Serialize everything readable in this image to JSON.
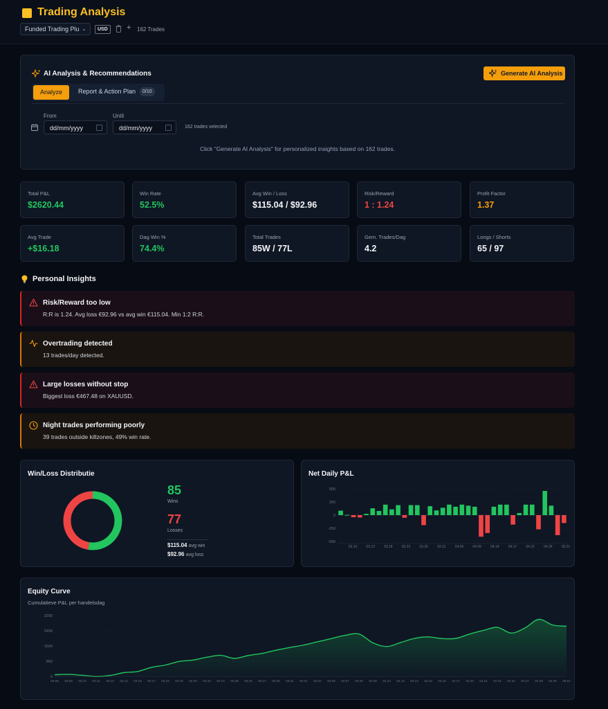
{
  "header": {
    "title": "Trading Analysis",
    "account": "Funded Trading Plu",
    "currency": "USD",
    "trades": "162 Trades"
  },
  "ai": {
    "title": "AI Analysis & Recommendations",
    "generate_label": "Generate AI Analysis",
    "tabs": {
      "analyze": "Analyze",
      "report": "Report & Action Plan",
      "report_badge": "0/10"
    },
    "from_label": "From",
    "until_label": "Until",
    "from_placeholder": "dd/mm/yyyy",
    "until_placeholder": "dd/mm/yyyy",
    "selected": "162 trades selected",
    "hint": "Click \"Generate AI Analysis\" for personalized insights based on 162 trades."
  },
  "stats": [
    {
      "label": "Total P&L",
      "value": "$2620.44",
      "color": "#22c55e"
    },
    {
      "label": "Win Rate",
      "value": "52.5%",
      "color": "#22c55e"
    },
    {
      "label": "Avg Win / Loss",
      "value": "$115.04 / $92.96",
      "color": "#f3f4f6"
    },
    {
      "label": "Risk/Reward",
      "value": "1 : 1.24",
      "color": "#ef4444"
    },
    {
      "label": "Profit Factor",
      "value": "1.37",
      "color": "#f59e0b"
    },
    {
      "label": "Avg Trade",
      "value": "+$16.18",
      "color": "#22c55e"
    },
    {
      "label": "Dag Win %",
      "value": "74.4%",
      "color": "#22c55e"
    },
    {
      "label": "Total Trades",
      "value": "85W / 77L",
      "color": "#f3f4f6"
    },
    {
      "label": "Gem. Trades/Dag",
      "value": "4.2",
      "color": "#f3f4f6"
    },
    {
      "label": "Longs / Shorts",
      "value": "65 / 97",
      "color": "#f3f4f6"
    }
  ],
  "insights": {
    "title": "Personal Insights",
    "items": [
      {
        "title": "Risk/Reward too low",
        "desc": "R:R is 1.24. Avg loss €92.96 vs avg win €115.04. Min 1:2 R:R.",
        "icon": "alert-triangle-icon",
        "level": "red"
      },
      {
        "title": "Overtrading detected",
        "desc": "13 trades/day detected.",
        "icon": "activity-icon",
        "level": "amber"
      },
      {
        "title": "Large losses without stop",
        "desc": "Biggest loss €467.48 on XAUUSD.",
        "icon": "alert-triangle-icon",
        "level": "red"
      },
      {
        "title": "Night trades performing poorly",
        "desc": "39 trades outside killzones, 49% win rate.",
        "icon": "clock-icon",
        "level": "amber"
      }
    ]
  },
  "winloss": {
    "title": "Win/Loss Distributie",
    "wins": "85",
    "wins_label": "Wins",
    "losses": "77",
    "losses_label": "Losses",
    "avg_win": "$115.04",
    "avg_win_label": "avg win",
    "avg_loss": "$92.96",
    "avg_loss_label": "avg loss"
  },
  "netdaily": {
    "title": "Net Daily P&L"
  },
  "equity": {
    "title": "Equity Curve",
    "subtitle": "Cumulatieve P&L per handelsdag"
  },
  "chart_data": [
    {
      "type": "pie",
      "title": "Win/Loss Distributie",
      "categories": [
        "Wins",
        "Losses"
      ],
      "values": [
        85,
        77
      ],
      "colors": [
        "#22c55e",
        "#ef4444"
      ]
    },
    {
      "type": "bar",
      "title": "Net Daily P&L",
      "ylim": [
        -500,
        500
      ],
      "yticks": [
        "500",
        "250",
        "0",
        "-250",
        "-500"
      ],
      "xticks": [
        "03.10",
        "03.13",
        "03.18",
        "03.23",
        "03.26",
        "03.31",
        "04.06",
        "04.09",
        "04.14",
        "04.17",
        "04.22",
        "04.28",
        "05.01"
      ],
      "values": [
        85,
        5,
        -40,
        -45,
        25,
        130,
        80,
        200,
        110,
        190,
        -50,
        190,
        190,
        -190,
        170,
        90,
        140,
        200,
        160,
        200,
        180,
        160,
        -410,
        -340,
        160,
        200,
        200,
        -180,
        40,
        200,
        200,
        -270,
        460,
        180,
        -380,
        -150
      ]
    },
    {
      "type": "area",
      "title": "Equity Curve",
      "ylim": [
        0,
        3200
      ],
      "yticks": [
        "3200",
        "2400",
        "1600",
        "800",
        "0"
      ],
      "xticks": [
        "03.06",
        "03.09",
        "03.10",
        "03.11",
        "03.12",
        "03.13",
        "03.16",
        "03.17",
        "03.18",
        "03.19",
        "03.20",
        "03.23",
        "03.24",
        "03.25",
        "03.26",
        "03.27",
        "03.30",
        "03.31",
        "04.01",
        "04.02",
        "04.06",
        "04.07",
        "04.08",
        "04.09",
        "04.10",
        "04.13",
        "04.14",
        "04.15",
        "04.16",
        "04.17",
        "04.20",
        "04.21",
        "04.22",
        "04.24",
        "04.27",
        "04.28",
        "04.29",
        "05.01"
      ],
      "x": [
        0,
        2,
        4,
        6,
        8,
        10,
        12,
        14,
        16,
        18,
        20,
        22,
        24,
        26,
        28,
        30,
        32,
        34,
        36,
        38,
        40,
        42,
        44,
        46,
        48,
        50,
        52,
        54,
        56,
        58,
        60,
        62,
        64,
        66,
        68,
        70,
        72,
        74
      ],
      "values": [
        90,
        110,
        60,
        0,
        50,
        200,
        260,
        480,
        600,
        790,
        860,
        1010,
        1110,
        950,
        1100,
        1210,
        1380,
        1520,
        1650,
        1820,
        1990,
        2160,
        2230,
        1770,
        1570,
        1780,
        2000,
        2080,
        1990,
        2000,
        2230,
        2420,
        2580,
        2280,
        2550,
        3000,
        2700,
        2640
      ]
    }
  ]
}
